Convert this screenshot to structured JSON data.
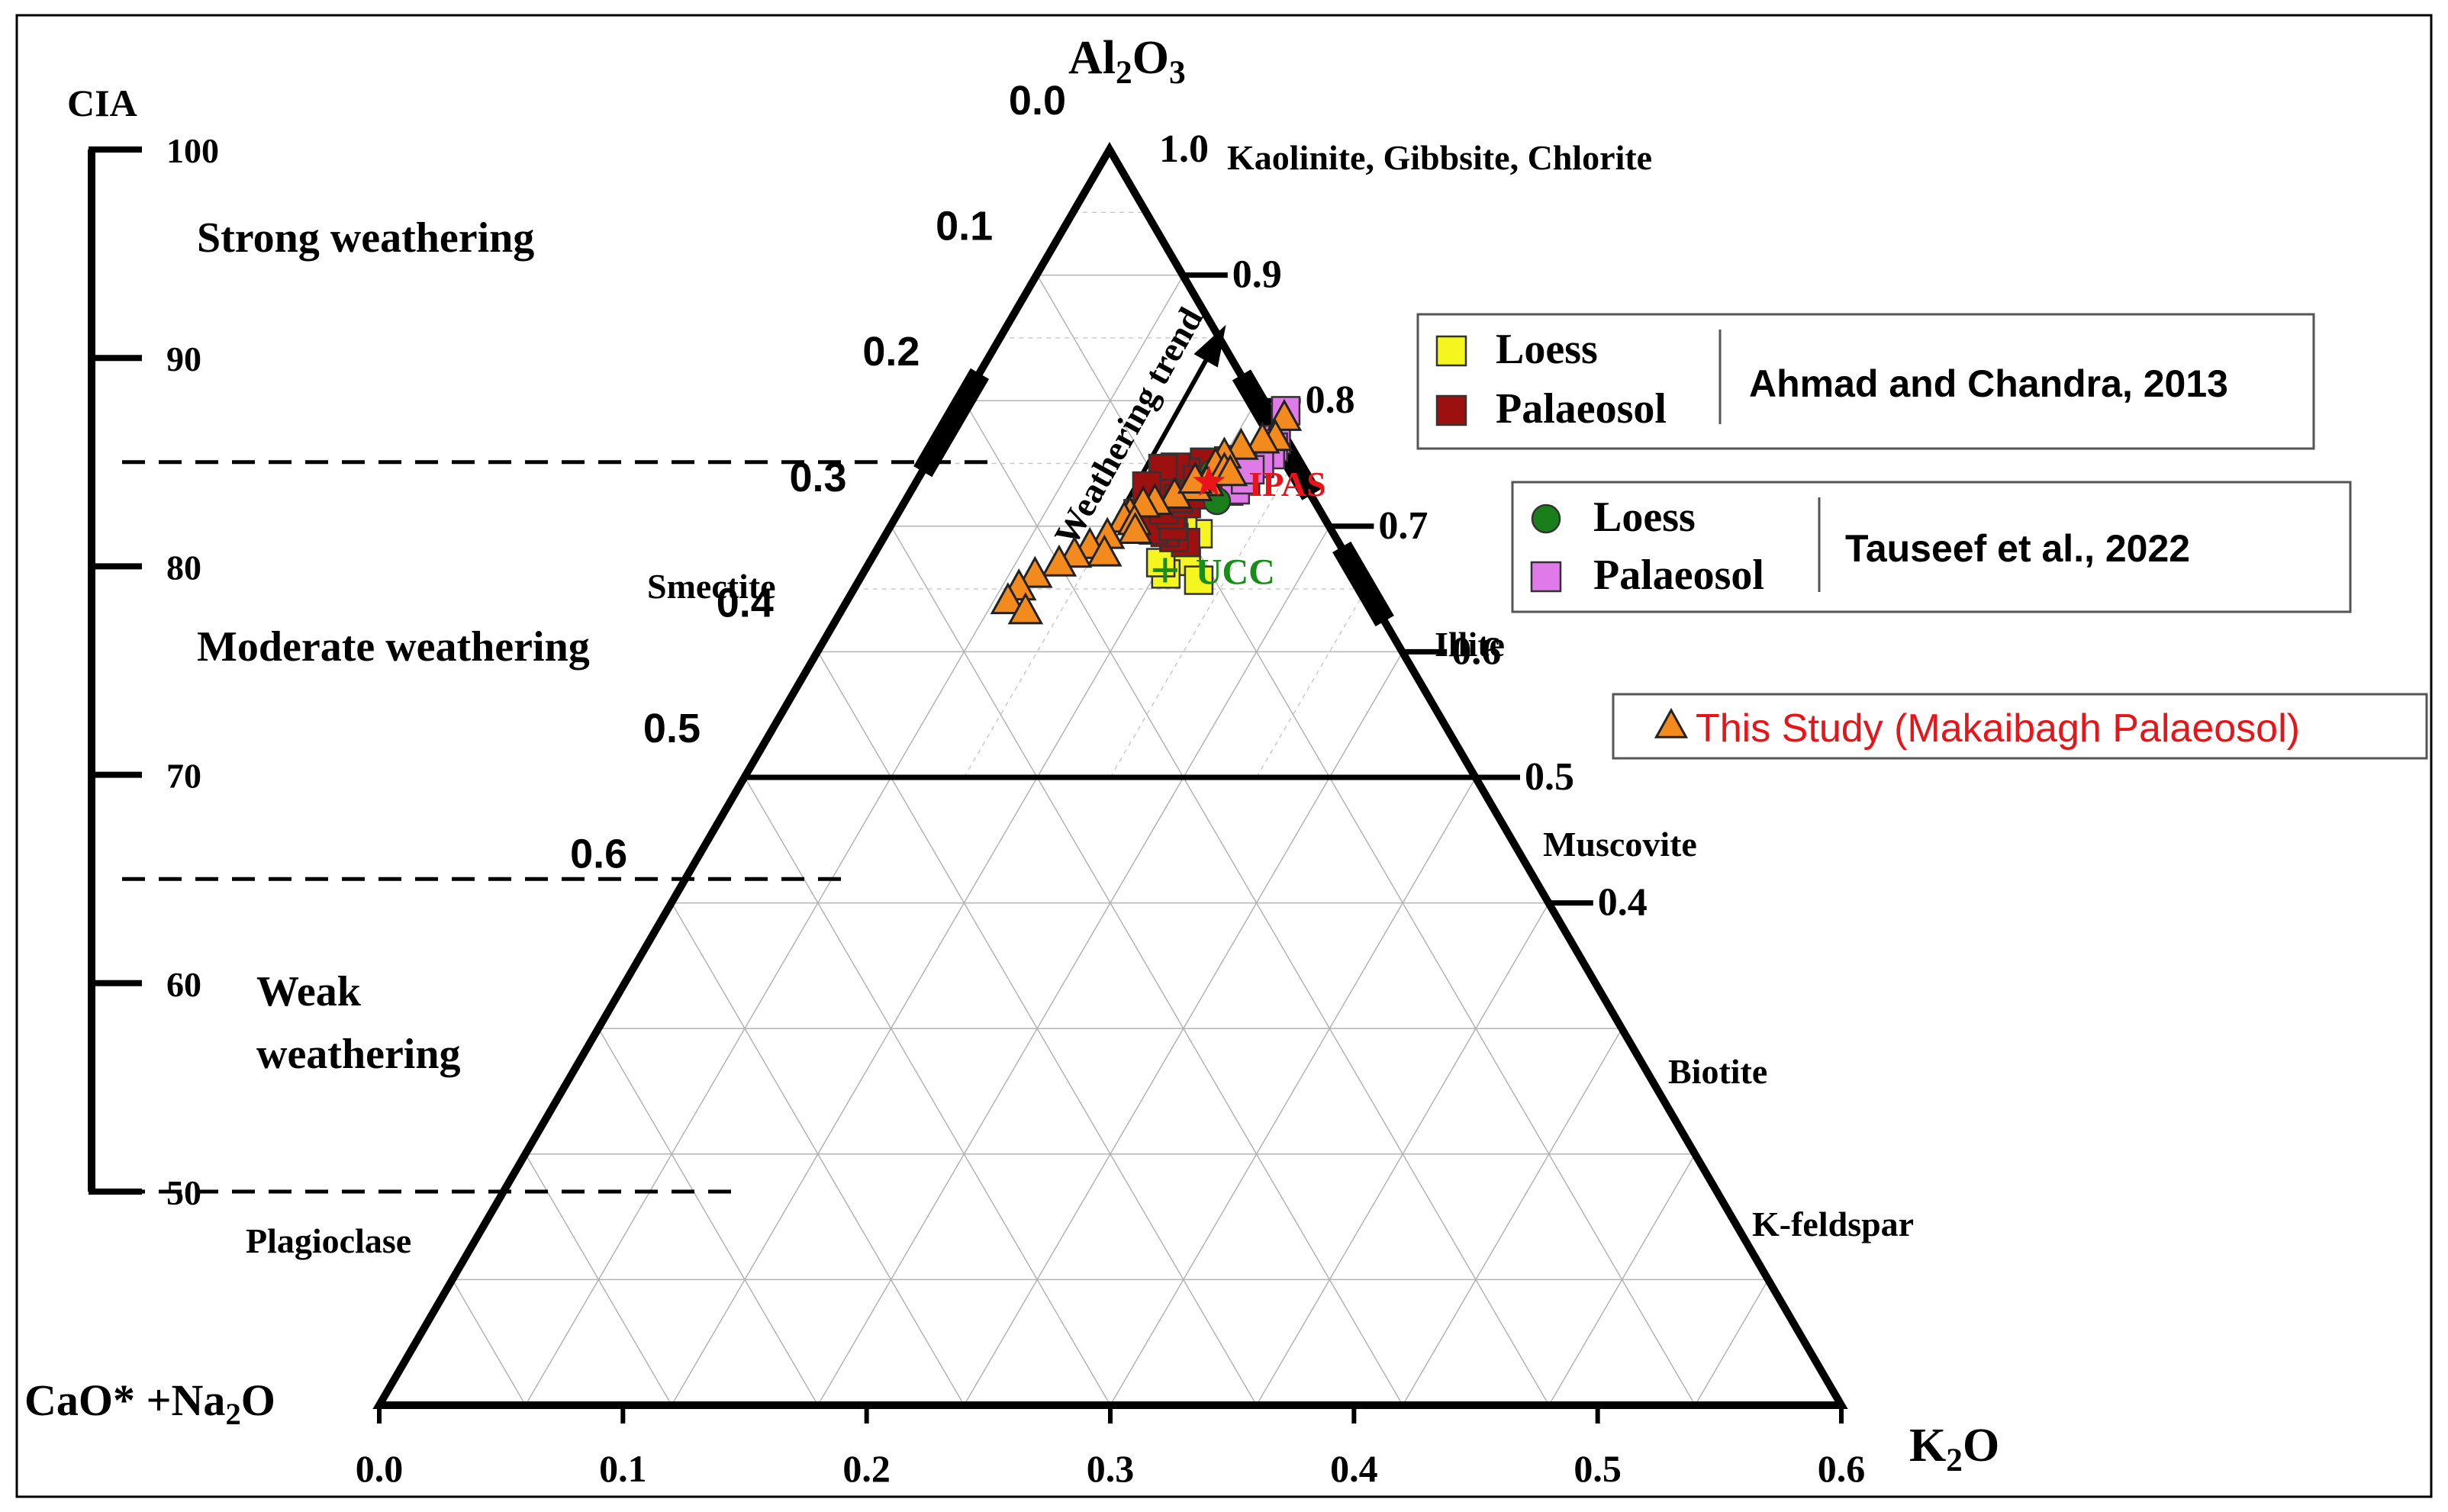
{
  "chart_data": {
    "type": "scatter",
    "subtype": "ternary",
    "apices": {
      "top": {
        "main": "Al",
        "sub1": "2",
        "mid": "O",
        "sub2": "3"
      },
      "left": {
        "main": "CaO* +Na",
        "sub1": "2",
        "mid": "O"
      },
      "right": {
        "main": "K",
        "sub1": "2",
        "mid": "O"
      }
    },
    "grid": true,
    "bottom_ticks": [
      "0.0",
      "0.1",
      "0.2",
      "0.3",
      "0.4",
      "0.5",
      "0.6"
    ],
    "left_ticks": [
      "0.0",
      "0.1",
      "0.2",
      "0.3",
      "0.4",
      "0.5",
      "0.6"
    ],
    "right_ticks": [
      "1.0",
      "0.9",
      "0.8",
      "0.7",
      "0.6",
      "0.5",
      "0.4"
    ],
    "cia_scale": {
      "title": "CIA",
      "ticks": [
        "100",
        "90",
        "80",
        "70",
        "60",
        "50"
      ],
      "zones": [
        {
          "label": [
            "Strong weathering"
          ]
        },
        {
          "label": [
            "Moderate weathering"
          ]
        },
        {
          "label": [
            "Weak",
            "weathering"
          ]
        }
      ]
    },
    "minerals": [
      "Kaolinite, Gibbsite, Chlorite",
      "Smectite",
      "Illite",
      "Muscovite",
      "Biotite",
      "Plagioclase",
      "K-feldspar"
    ],
    "reference_points": {
      "ucc": {
        "label": "UCC",
        "al2o3": 0.665,
        "k2o": 0.205,
        "color": "#1a8c1a"
      },
      "ipas": {
        "label": "IPAS",
        "al2o3": 0.735,
        "k2o": 0.2,
        "color": "#e8141a"
      }
    },
    "trend_label": "Weathering trend",
    "legend": {
      "box1": {
        "items": [
          {
            "label": "Loess",
            "color": "#f5f520",
            "marker": "square"
          },
          {
            "label": "Palaeosol",
            "color": "#9c1010",
            "marker": "square"
          }
        ],
        "source": "Ahmad and Chandra, 2013"
      },
      "box2": {
        "items": [
          {
            "label": "Loess",
            "color": "#1a7f1a",
            "marker": "circle"
          },
          {
            "label": "Palaeosol",
            "color": "#e07ae8",
            "marker": "square"
          }
        ],
        "source": "Tauseef et al., 2022"
      },
      "box3": {
        "items": [
          {
            "label": "This Study (Makaibagh  Palaeosol)",
            "color": "#f28a1e",
            "marker": "triangle",
            "text_color": "#e8141a"
          }
        ]
      }
    },
    "series": [
      {
        "name": "Loess",
        "source": "Ahmad and Chandra, 2013",
        "marker": "square",
        "color": "#f5f520",
        "points": [
          [
            0.694,
            0.213
          ],
          [
            0.672,
            0.216
          ],
          [
            0.662,
            0.207
          ],
          [
            0.671,
            0.199
          ],
          [
            0.705,
            0.191
          ],
          [
            0.71,
            0.177
          ],
          [
            0.712,
            0.169
          ],
          [
            0.657,
            0.232
          ],
          [
            0.699,
            0.2
          ],
          [
            0.739,
            0.203
          ],
          [
            0.73,
            0.21
          ]
        ]
      },
      {
        "name": "Palaeosol",
        "source": "Ahmad and Chandra, 2013",
        "marker": "square",
        "color": "#9c1010",
        "points": [
          [
            0.742,
            0.198
          ],
          [
            0.751,
            0.189
          ],
          [
            0.743,
            0.18
          ],
          [
            0.747,
            0.171
          ],
          [
            0.746,
            0.163
          ],
          [
            0.726,
            0.175
          ],
          [
            0.732,
            0.159
          ],
          [
            0.704,
            0.172
          ],
          [
            0.71,
            0.164
          ],
          [
            0.687,
            0.208
          ],
          [
            0.691,
            0.198
          ],
          [
            0.695,
            0.19
          ],
          [
            0.697,
            0.181
          ],
          [
            0.7,
            0.193
          ],
          [
            0.709,
            0.187
          ],
          [
            0.713,
            0.18
          ],
          [
            0.718,
            0.193
          ],
          [
            0.722,
            0.186
          ],
          [
            0.725,
            0.2
          ],
          [
            0.737,
            0.191
          ],
          [
            0.735,
            0.209
          ],
          [
            0.728,
            0.217
          ],
          [
            0.752,
            0.205
          ]
        ]
      },
      {
        "name": "Loess",
        "source": "Tauseef et al., 2022",
        "marker": "circle",
        "color": "#1a7f1a",
        "points": [
          [
            0.748,
            0.203
          ],
          [
            0.743,
            0.199
          ],
          [
            0.72,
            0.213
          ]
        ]
      },
      {
        "name": "Palaeosol",
        "source": "Tauseef et al., 2022",
        "marker": "square",
        "color": "#e07ae8",
        "points": [
          [
            0.792,
            0.224
          ],
          [
            0.769,
            0.229
          ],
          [
            0.763,
            0.23
          ],
          [
            0.757,
            0.231
          ],
          [
            0.75,
            0.227
          ],
          [
            0.753,
            0.214
          ],
          [
            0.741,
            0.217
          ],
          [
            0.729,
            0.221
          ],
          [
            0.737,
            0.224
          ],
          [
            0.745,
            0.223
          ]
        ]
      },
      {
        "name": "This Study (Makaibagh  Palaeosol)",
        "marker": "triangle",
        "color": "#f28a1e",
        "points": [
          [
            0.786,
            0.226
          ],
          [
            0.77,
            0.228
          ],
          [
            0.768,
            0.22
          ],
          [
            0.763,
            0.208
          ],
          [
            0.756,
            0.2
          ],
          [
            0.748,
            0.198
          ],
          [
            0.744,
            0.206
          ],
          [
            0.742,
            0.211
          ],
          [
            0.734,
            0.199
          ],
          [
            0.73,
            0.193
          ],
          [
            0.724,
            0.182
          ],
          [
            0.719,
            0.171
          ],
          [
            0.717,
            0.164
          ],
          [
            0.709,
            0.159
          ],
          [
            0.705,
            0.157
          ],
          [
            0.703,
            0.165
          ],
          [
            0.696,
            0.169
          ],
          [
            0.692,
            0.152
          ],
          [
            0.684,
            0.144
          ],
          [
            0.678,
            0.157
          ],
          [
            0.677,
            0.137
          ],
          [
            0.67,
            0.13
          ],
          [
            0.661,
            0.118
          ],
          [
            0.651,
            0.112
          ],
          [
            0.64,
            0.11
          ],
          [
            0.632,
            0.126
          ],
          [
            0.736,
            0.19
          ]
        ]
      }
    ]
  }
}
